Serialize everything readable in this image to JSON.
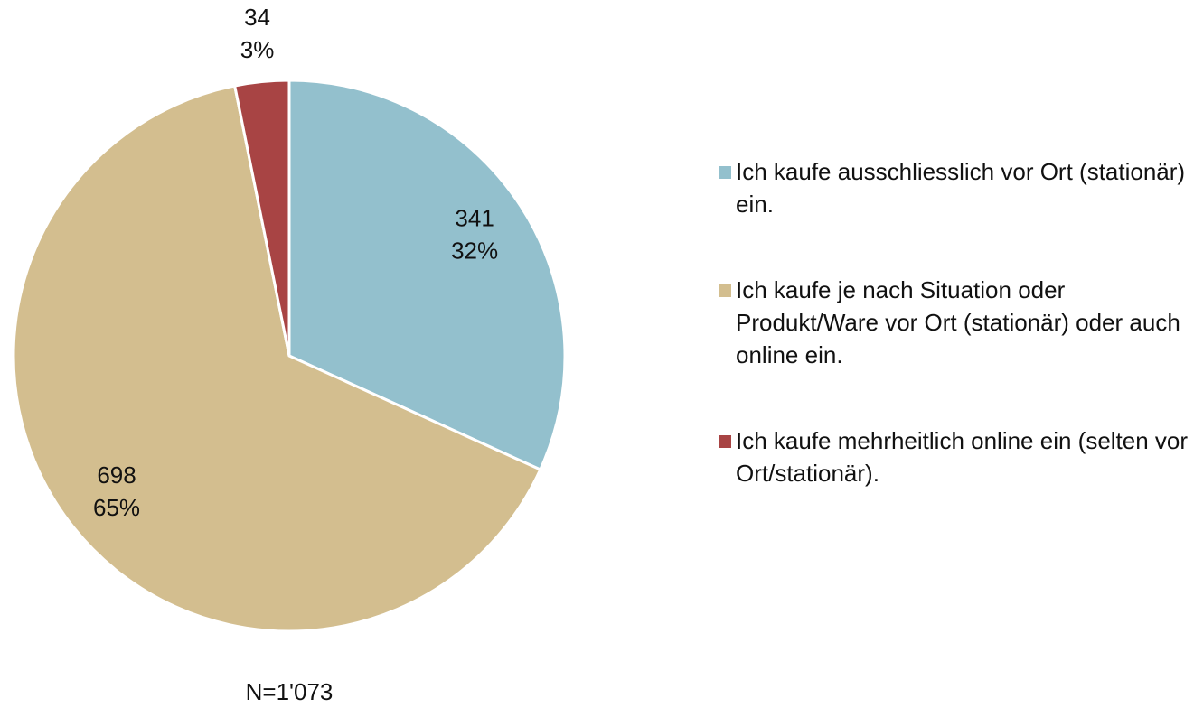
{
  "chart_data": {
    "type": "pie",
    "categories": [
      "Ich kaufe ausschliesslich vor Ort (stationär) ein.",
      "Ich kaufe je nach Situation oder Produkt/Ware vor Ort (stationär) oder auch online ein.",
      "Ich kaufe mehrheitlich online ein (selten vor Ort/stationär)."
    ],
    "values": [
      341,
      698,
      34
    ],
    "percentages": [
      32,
      65,
      3
    ],
    "percentage_labels": [
      "32%",
      "65%",
      "3%"
    ],
    "colors": [
      "#93c0cd",
      "#d3be8f",
      "#a84444"
    ],
    "legend": "right",
    "note": "N=1'073"
  }
}
